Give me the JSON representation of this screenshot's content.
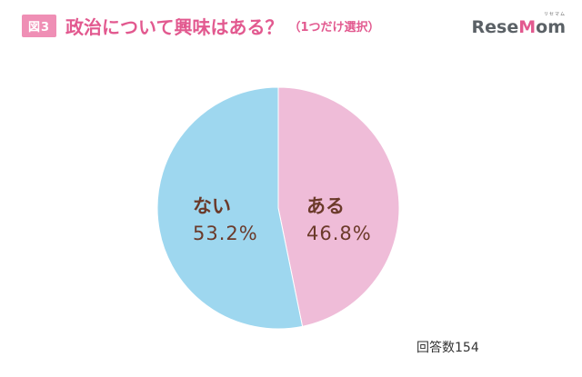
{
  "header": {
    "badge": "図3",
    "title": "政治について興味はある？",
    "subtitle": "（1つだけ選択）"
  },
  "logo": {
    "kana": "リセマム",
    "text_part1": "Rese",
    "text_part2": "M",
    "text_part3": "om",
    "accent_color": "#e2598f"
  },
  "note": "回答数154",
  "chart_data": {
    "type": "pie",
    "title": "政治について興味はある？",
    "start_angle_deg": 0,
    "direction": "clockwise",
    "slices": [
      {
        "label": "ある",
        "value": 46.8,
        "display": "46.8%",
        "color": "#efbcd8"
      },
      {
        "label": "ない",
        "value": 53.2,
        "display": "53.2%",
        "color": "#9ed7ef"
      }
    ]
  }
}
